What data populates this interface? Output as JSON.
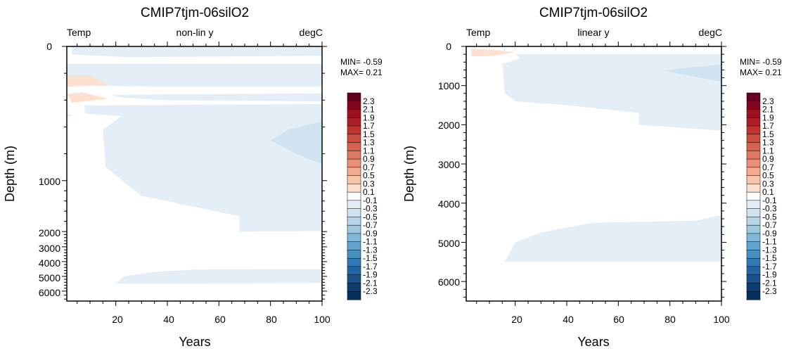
{
  "chart_data": [
    {
      "type": "heatmap",
      "title": "CMIP7tjm-06silO2",
      "subtitle_left": "Temp",
      "subtitle_center": "non-lin y",
      "subtitle_right": "degC",
      "xlabel": "Years",
      "ylabel": "Depth (m)",
      "xlim": [
        1,
        100
      ],
      "ylim": [
        0,
        6500
      ],
      "y_scale": "non-linear",
      "x_ticks": [
        "20",
        "40",
        "60",
        "80",
        "100"
      ],
      "y_ticks": [
        "0",
        "1000",
        "2000",
        "3000",
        "4000",
        "5000",
        "6000"
      ],
      "min_label": "MIN= -0.59",
      "max_label": "MAX=  0.21",
      "min": -0.59,
      "max": 0.21,
      "regions": [
        {
          "value": -0.2,
          "points": [
            [
              3,
              1
            ],
            [
              100,
              1
            ],
            [
              100,
              70
            ],
            [
              25,
              80
            ],
            [
              3,
              60
            ]
          ]
        },
        {
          "value": -0.2,
          "points": [
            [
              1,
              130
            ],
            [
              100,
              130
            ],
            [
              100,
              300
            ],
            [
              40,
              300
            ],
            [
              1,
              290
            ]
          ]
        },
        {
          "value": 0.2,
          "points": [
            [
              1,
              215
            ],
            [
              10,
              215
            ],
            [
              17,
              285
            ],
            [
              1,
              300
            ]
          ]
        },
        {
          "value": 0.2,
          "points": [
            [
              1,
              355
            ],
            [
              7,
              340
            ],
            [
              17,
              390
            ],
            [
              3,
              420
            ]
          ]
        },
        {
          "value": -0.2,
          "points": [
            [
              18,
              360
            ],
            [
              100,
              350
            ],
            [
              100,
              410
            ],
            [
              38,
              400
            ],
            [
              22,
              380
            ]
          ]
        },
        {
          "value": -0.2,
          "points": [
            [
              8,
              440
            ],
            [
              100,
              430
            ],
            [
              100,
              1990
            ],
            [
              68,
              2000
            ],
            [
              68,
              1700
            ],
            [
              30,
              1300
            ],
            [
              16,
              900
            ],
            [
              15,
              620
            ],
            [
              22,
              520
            ],
            [
              8,
              500
            ]
          ]
        },
        {
          "value": 0.2,
          "points": [
            [
              1,
              505
            ],
            [
              3,
              515
            ],
            [
              1,
              525
            ]
          ]
        },
        {
          "value": -0.4,
          "points": [
            [
              100,
              560
            ],
            [
              87,
              620
            ],
            [
              80,
              700
            ],
            [
              90,
              800
            ],
            [
              100,
              880
            ]
          ]
        },
        {
          "value": -0.2,
          "points": [
            [
              20,
              5500
            ],
            [
              23,
              5000
            ],
            [
              35,
              4700
            ],
            [
              50,
              4550
            ],
            [
              100,
              4500
            ],
            [
              100,
              5450
            ]
          ]
        }
      ]
    },
    {
      "type": "heatmap",
      "title": "CMIP7tjm-06silO2",
      "subtitle_left": "Temp",
      "subtitle_center": "linear y",
      "subtitle_right": "degC",
      "xlabel": "Years",
      "ylabel": "Depth (m)",
      "xlim": [
        1,
        100
      ],
      "ylim": [
        0,
        6500
      ],
      "y_scale": "linear",
      "x_ticks": [
        "20",
        "40",
        "60",
        "80",
        "100"
      ],
      "y_ticks": [
        "0",
        "1000",
        "2000",
        "3000",
        "4000",
        "5000",
        "6000"
      ],
      "min_label": "MIN= -0.59",
      "max_label": "MAX=  0.21",
      "min": -0.59,
      "max": 0.21,
      "regions": [
        {
          "value": 0.2,
          "points": [
            [
              3,
              60
            ],
            [
              10,
              80
            ],
            [
              20,
              150
            ],
            [
              10,
              250
            ],
            [
              3,
              250
            ]
          ]
        },
        {
          "value": -0.2,
          "points": [
            [
              20,
              200
            ],
            [
              100,
              200
            ],
            [
              100,
              2150
            ],
            [
              68,
              2000
            ],
            [
              68,
              1700
            ],
            [
              40,
              1500
            ],
            [
              20,
              1400
            ],
            [
              16,
              1200
            ],
            [
              15,
              450
            ],
            [
              22,
              300
            ]
          ]
        },
        {
          "value": -0.4,
          "points": [
            [
              100,
              460
            ],
            [
              86,
              550
            ],
            [
              78,
              620
            ],
            [
              90,
              780
            ],
            [
              100,
              900
            ]
          ]
        },
        {
          "value": -0.2,
          "points": [
            [
              16,
              5500
            ],
            [
              20,
              5000
            ],
            [
              30,
              4750
            ],
            [
              50,
              4500
            ],
            [
              90,
              4450
            ],
            [
              100,
              4300
            ],
            [
              100,
              5500
            ]
          ]
        }
      ]
    }
  ],
  "colorbar": {
    "labels": [
      "2.3",
      "2.1",
      "1.9",
      "1.7",
      "1.5",
      "1.3",
      "1.1",
      "0.9",
      "0.7",
      "0.5",
      "0.3",
      "0.1",
      "-0.1",
      "-0.3",
      "-0.5",
      "-0.7",
      "-0.9",
      "-1.1",
      "-1.3",
      "-1.5",
      "-1.7",
      "-1.9",
      "-2.1",
      "-2.3"
    ],
    "colors": [
      "#67001f",
      "#80061f",
      "#99101f",
      "#ad1e25",
      "#c0342f",
      "#cc4c3d",
      "#d6614c",
      "#e07761",
      "#ea9178",
      "#f4aa8e",
      "#f9c5ac",
      "#fde0d0",
      "#ffffff",
      "#e3eef6",
      "#cfe3f0",
      "#b9d6ea",
      "#9fc9e1",
      "#83b9d8",
      "#63a4cc",
      "#4690c1",
      "#3179b6",
      "#2265a4",
      "#1a528e",
      "#0f3c6e",
      "#053061"
    ]
  }
}
